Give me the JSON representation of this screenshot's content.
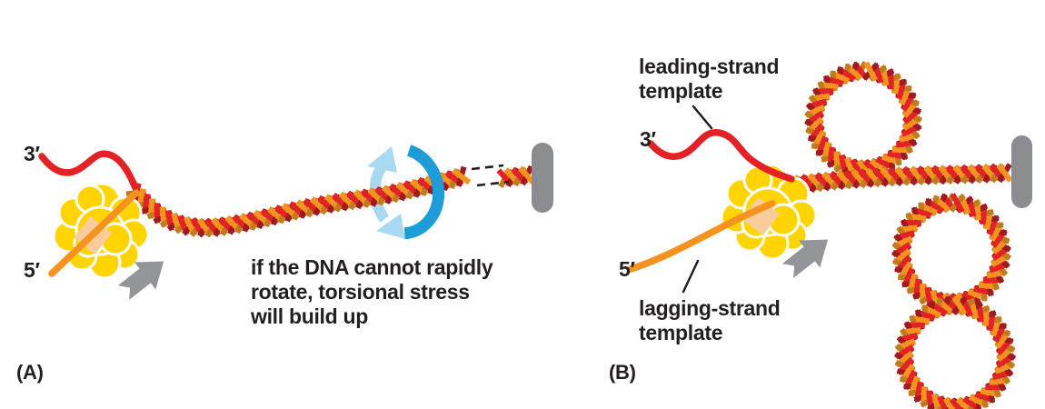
{
  "figure": {
    "panel_a": {
      "label": "(A)",
      "three_prime_label": "3′",
      "five_prime_label": "5′",
      "caption": "if the DNA cannot rapidly\nrotate, torsional stress\nwill build up"
    },
    "panel_b": {
      "label": "(B)",
      "three_prime_label": "3′",
      "five_prime_label": "5′",
      "leading_strand_label": "leading-strand\ntemplate",
      "lagging_strand_label": "lagging-strand\ntemplate"
    }
  },
  "icons": {
    "rotation_arrow": "circular-rotation-arrow",
    "movement_arrow": "block-arrow-up-right",
    "anchor_bar": "rounded-capsule-bar"
  },
  "colors": {
    "dna_red": "#E32226",
    "dna_orange": "#F6921E",
    "dna_dark_red": "#9E1B1F",
    "dna_dark_orange": "#BF7B1C",
    "machine_yellow": "#FFD400",
    "machine_channel": "#F9CD9B",
    "machine_outline": "#FFFFFF",
    "rotation_front_blue": "#1E9CD7",
    "rotation_back_blue": "#A9D8F2",
    "anchor_gray": "#8A8C8F",
    "movement_arrow_gray": "#939598",
    "text_color": "#231F20"
  }
}
